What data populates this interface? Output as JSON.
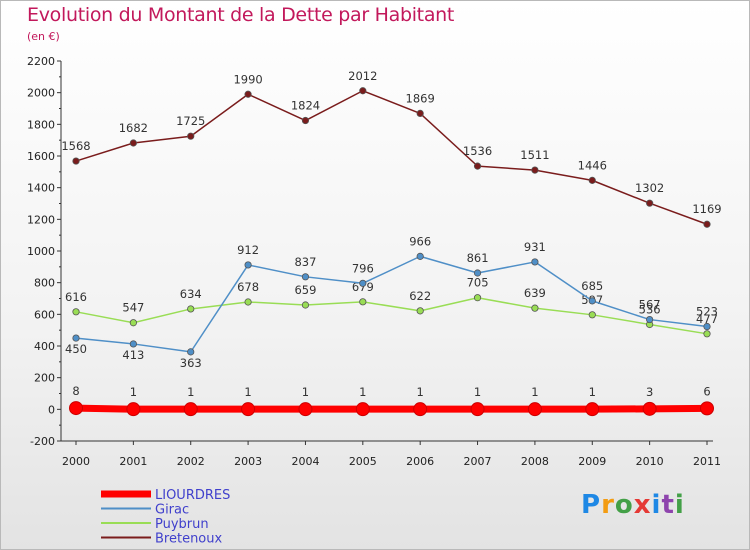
{
  "chart_data": {
    "type": "line",
    "title": "Evolution du Montant de la Dette par Habitant",
    "subtitle": "(en €)",
    "x": [
      "2000",
      "2001",
      "2002",
      "2003",
      "2004",
      "2005",
      "2006",
      "2007",
      "2008",
      "2009",
      "2010",
      "2011"
    ],
    "ylim": [
      -200,
      2200
    ],
    "yticks": [
      -200,
      0,
      200,
      400,
      600,
      800,
      1000,
      1200,
      1400,
      1600,
      1800,
      2000,
      2200
    ],
    "grid": false,
    "legend_position": "bottom-left",
    "series": [
      {
        "name": "LIOURDRES",
        "color": "#ff0000",
        "values": [
          8,
          1,
          1,
          1,
          1,
          1,
          1,
          1,
          1,
          1,
          3,
          6
        ]
      },
      {
        "name": "Girac",
        "color": "#4f8fc7",
        "values": [
          450,
          413,
          363,
          912,
          837,
          796,
          966,
          861,
          931,
          685,
          567,
          523
        ]
      },
      {
        "name": "Puybrun",
        "color": "#99dd55",
        "values": [
          616,
          547,
          634,
          678,
          659,
          679,
          622,
          705,
          639,
          597,
          536,
          477
        ]
      },
      {
        "name": "Bretenoux",
        "color": "#7a1c1c",
        "values": [
          1568,
          1682,
          1725,
          1990,
          1824,
          2012,
          1869,
          1536,
          1511,
          1446,
          1302,
          1169
        ]
      }
    ]
  },
  "logo": {
    "letters": [
      "P",
      "r",
      "o",
      "x",
      "i",
      "t",
      "i"
    ],
    "colors": [
      "#1e88e5",
      "#f39c12",
      "#43a047",
      "#e53935",
      "#1e88e5",
      "#8e44ad",
      "#43a047"
    ]
  }
}
